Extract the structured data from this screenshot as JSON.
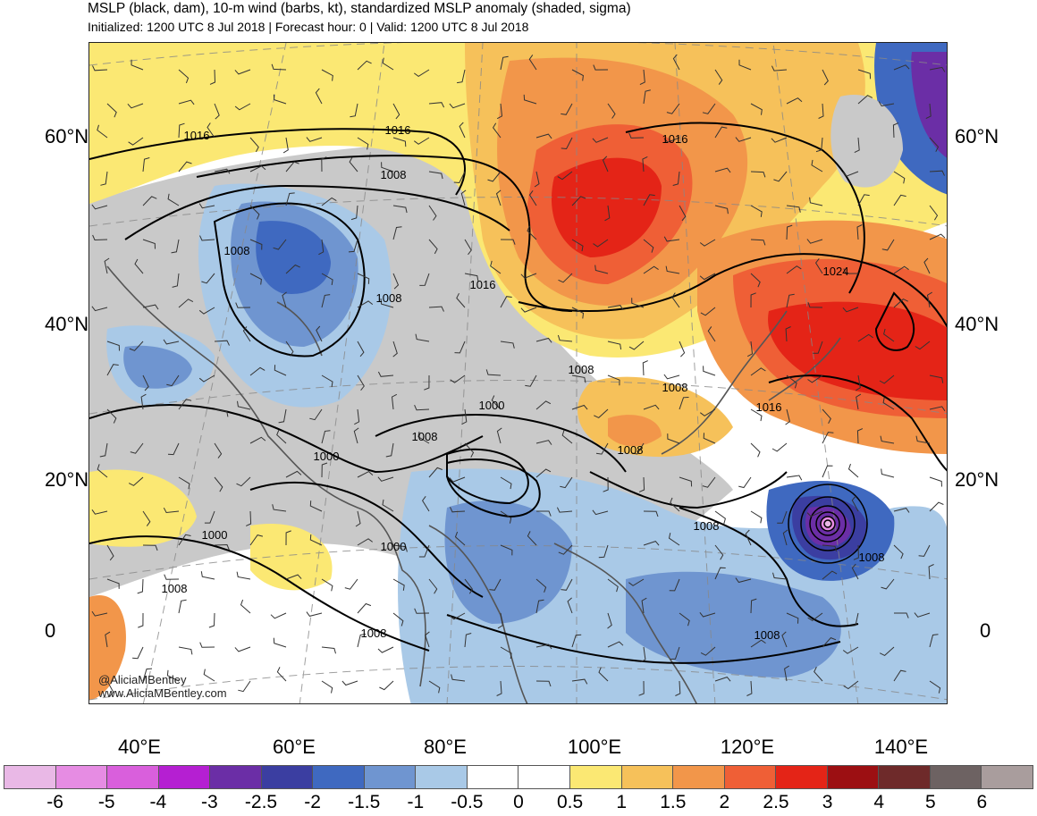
{
  "header": {
    "title": "MSLP (black, dam), 10-m wind (barbs, kt), standardized MSLP anomaly (shaded, sigma)",
    "subtitle": "Initialized: 1200 UTC 8 Jul 2018 | Forecast hour: 0 | Valid: 1200 UTC 8 Jul 2018"
  },
  "map": {
    "lat_labels": [
      "60°N",
      "40°N",
      "20°N",
      "0"
    ],
    "lon_labels": [
      "40°E",
      "60°E",
      "80°E",
      "100°E",
      "120°E",
      "140°E"
    ],
    "contour_labels": [
      "1016",
      "1016",
      "1008",
      "1016",
      "1008",
      "1016",
      "1008",
      "1024",
      "1008",
      "1008",
      "1000",
      "1008",
      "1016",
      "1000",
      "1008",
      "1000",
      "1000",
      "1008",
      "1008",
      "1008",
      "1008",
      "1008"
    ],
    "credits": [
      "@AliciaMBentley",
      "www.AliciaMBentley.com"
    ]
  },
  "colorbar": {
    "labels": [
      "-6",
      "-5",
      "-4",
      "-3",
      "-2.5",
      "-2",
      "-1.5",
      "-1",
      "-0.5",
      "0",
      "0.5",
      "1",
      "1.5",
      "2",
      "2.5",
      "3",
      "4",
      "5",
      "6"
    ],
    "colors": [
      "#e9b8e6",
      "#e68ce3",
      "#d95fdc",
      "#b51fd2",
      "#6b2ea6",
      "#3b3ea1",
      "#3f69c0",
      "#6f95d0",
      "#a9c9e7",
      "#ffffff",
      "#ffffff",
      "#fbe873",
      "#f6c15a",
      "#f2964a",
      "#ef5f36",
      "#e42417",
      "#9c0f12",
      "#6e2a2a",
      "#6d6262",
      "#a99d9d"
    ]
  },
  "legend": {
    "mslp_contours": "black",
    "wind": "barbs",
    "anomaly": "shaded"
  }
}
